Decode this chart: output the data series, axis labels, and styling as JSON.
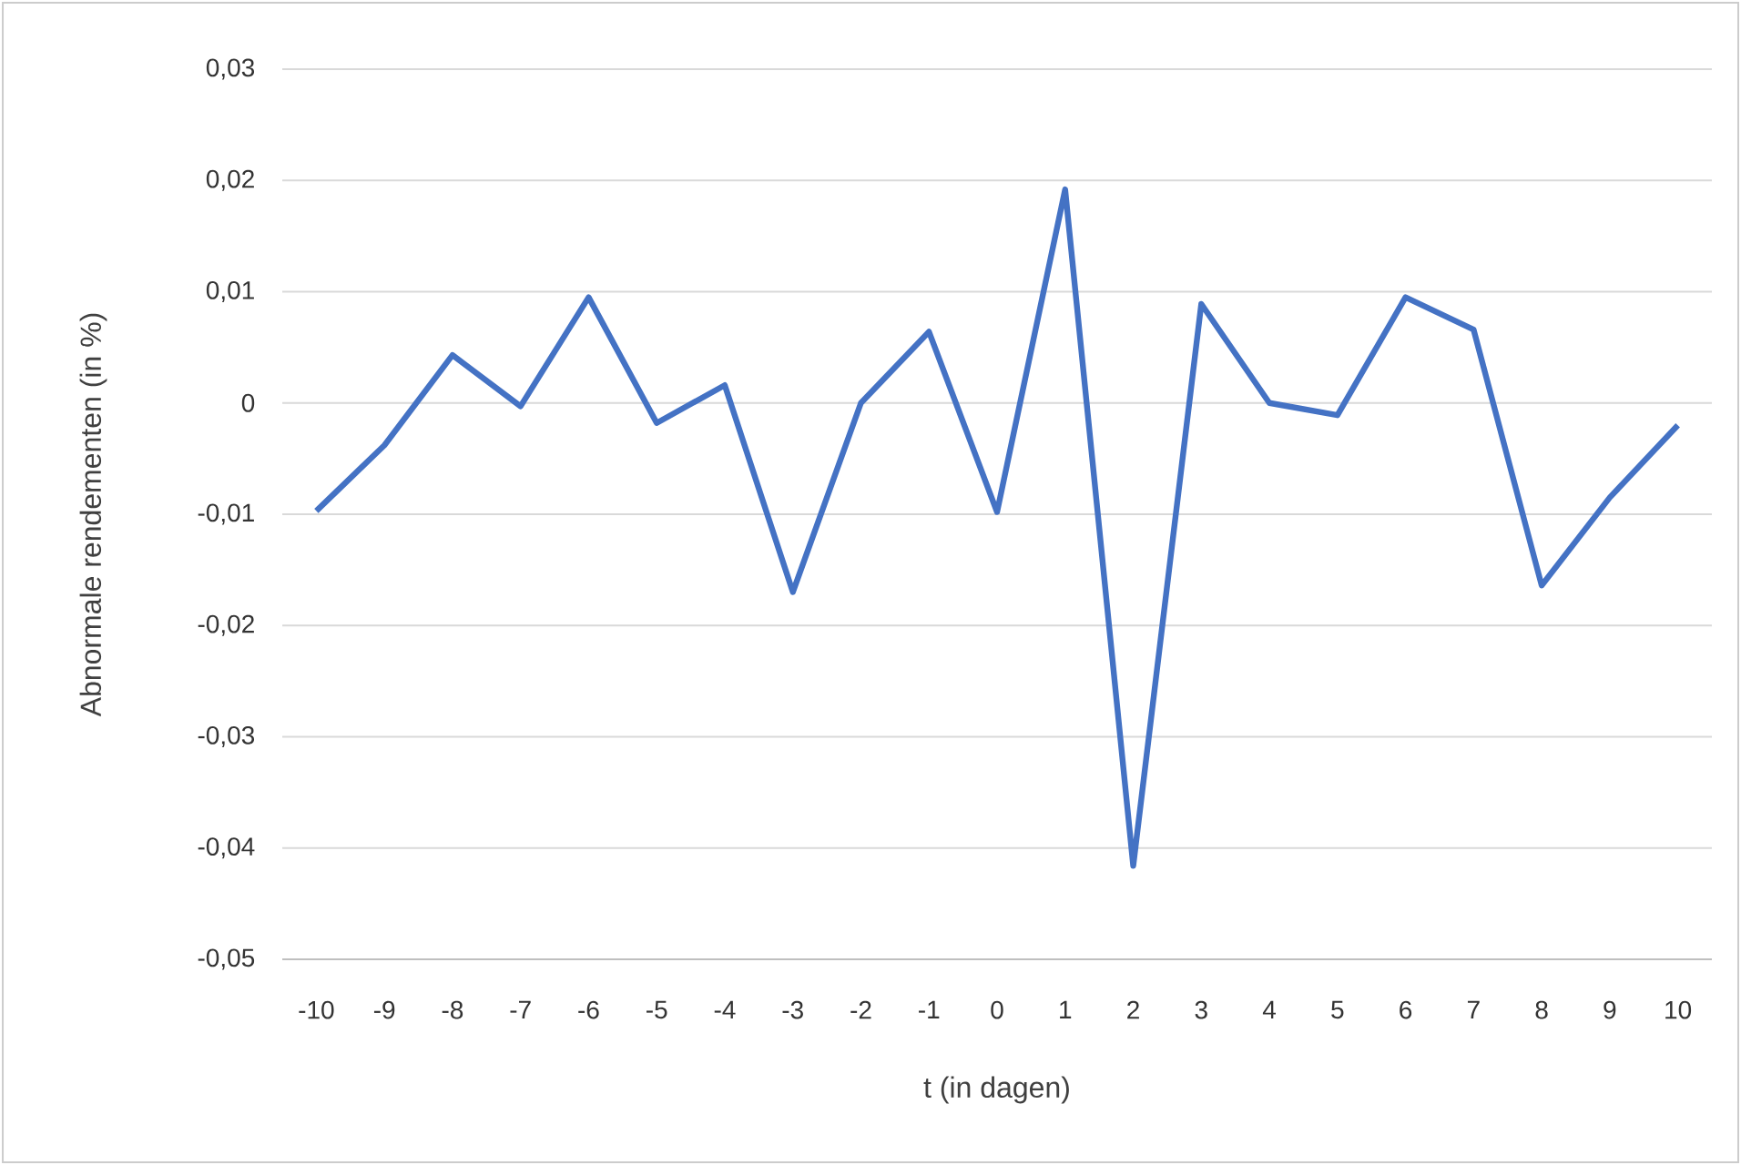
{
  "chart_data": {
    "type": "line",
    "xlabel": "t (in dagen)",
    "ylabel": "Abnormale rendementen (in %)",
    "categories": [
      "-10",
      "-9",
      "-8",
      "-7",
      "-6",
      "-5",
      "-4",
      "-3",
      "-2",
      "-1",
      "0",
      "1",
      "2",
      "3",
      "4",
      "5",
      "6",
      "7",
      "8",
      "9",
      "10"
    ],
    "series": [
      {
        "color": "#4472c4",
        "values": [
          -0.0097,
          -0.0038,
          0.0043,
          -0.0003,
          0.0095,
          -0.0018,
          0.0016,
          -0.017,
          0.0,
          0.0064,
          -0.0098,
          0.0192,
          -0.0416,
          0.0089,
          0.0,
          -0.0011,
          0.0095,
          0.0066,
          -0.0164,
          -0.0085,
          -0.002
        ]
      }
    ],
    "ylim": [
      -0.05,
      0.03
    ],
    "yticks": [
      {
        "value": -0.05,
        "label": "-0,05"
      },
      {
        "value": -0.04,
        "label": "-0,04"
      },
      {
        "value": -0.03,
        "label": "-0,03"
      },
      {
        "value": -0.02,
        "label": "-0,02"
      },
      {
        "value": -0.01,
        "label": "-0,01"
      },
      {
        "value": 0,
        "label": "0"
      },
      {
        "value": 0.01,
        "label": "0,01"
      },
      {
        "value": 0.02,
        "label": "0,02"
      },
      {
        "value": 0.03,
        "label": "0,03"
      }
    ],
    "grid": "y",
    "marker": "none",
    "line_style": "solid"
  }
}
